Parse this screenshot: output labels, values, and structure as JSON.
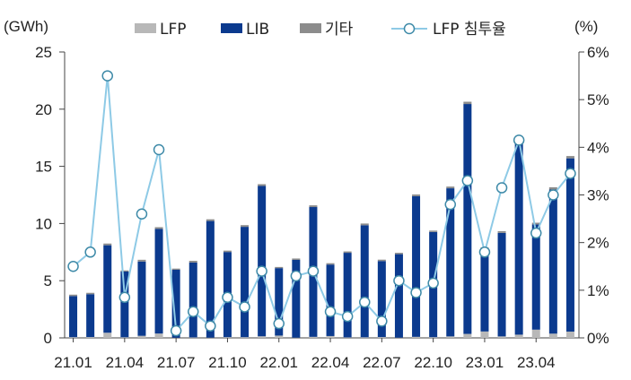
{
  "chart_data": {
    "type": "bar",
    "subtype": "stacked bar with line on secondary axis",
    "categories": [
      "21.01",
      "21.02",
      "21.03",
      "21.04",
      "21.05",
      "21.06",
      "21.07",
      "21.08",
      "21.09",
      "21.10",
      "21.11",
      "21.12",
      "22.01",
      "22.02",
      "22.03",
      "22.04",
      "22.05",
      "22.06",
      "22.07",
      "22.08",
      "22.09",
      "22.10",
      "22.11",
      "22.12",
      "23.01",
      "23.02",
      "23.03",
      "23.04",
      "23.05",
      "23.06"
    ],
    "x_tick_labels": [
      "21.01",
      "21.04",
      "21.07",
      "21.10",
      "22.01",
      "22.04",
      "22.07",
      "22.10",
      "23.01",
      "23.04"
    ],
    "y_left": {
      "unit": "(GWh)",
      "ylim": [
        0,
        25
      ],
      "ticks": [
        "0",
        "5",
        "10",
        "15",
        "20",
        "25"
      ]
    },
    "y_right": {
      "unit": "(%)",
      "ylim": [
        0,
        6
      ],
      "ticks": [
        "0%",
        "1%",
        "2%",
        "3%",
        "4%",
        "5%",
        "6%"
      ]
    },
    "series": [
      {
        "name": "LFP",
        "kind": "bar",
        "axis": "left",
        "color": "#b8b8b8",
        "values": [
          0.06,
          0.07,
          0.45,
          0.05,
          0.18,
          0.38,
          0.01,
          0.04,
          0.02,
          0.06,
          0.06,
          0.14,
          0.2,
          0.02,
          0.09,
          0.16,
          0.04,
          0.05,
          0.07,
          0.02,
          0.09,
          0.06,
          0.13,
          0.35,
          0.56,
          0.13,
          0.28,
          0.72,
          0.37,
          0.55
        ]
      },
      {
        "name": "LIB",
        "kind": "bar",
        "axis": "left",
        "color": "#0b3a8e",
        "values": [
          3.6,
          3.75,
          7.65,
          5.75,
          6.5,
          9.15,
          5.95,
          6.55,
          10.2,
          7.45,
          9.65,
          13.15,
          5.9,
          6.8,
          11.35,
          6.25,
          7.4,
          9.8,
          6.65,
          7.3,
          12.3,
          9.2,
          12.95,
          20.1,
          7.2,
          9.05,
          16.9,
          9.2,
          12.6,
          15.15
        ]
      },
      {
        "name": "기타",
        "kind": "bar",
        "axis": "left",
        "color": "#8c8c8c",
        "values": [
          0.12,
          0.12,
          0.15,
          0.1,
          0.15,
          0.15,
          0.1,
          0.15,
          0.15,
          0.12,
          0.15,
          0.15,
          0.1,
          0.12,
          0.15,
          0.12,
          0.12,
          0.15,
          0.12,
          0.12,
          0.15,
          0.12,
          0.15,
          0.2,
          0.15,
          0.15,
          0.2,
          0.15,
          0.2,
          0.2
        ]
      },
      {
        "name": "LFP 침투율",
        "kind": "line",
        "axis": "right",
        "color": "#8ecae6",
        "values": [
          1.5,
          1.8,
          5.5,
          0.85,
          2.6,
          3.95,
          0.15,
          0.55,
          0.25,
          0.85,
          0.65,
          1.4,
          0.3,
          1.3,
          1.4,
          0.55,
          0.45,
          0.75,
          0.35,
          1.2,
          0.95,
          1.15,
          2.8,
          3.3,
          1.8,
          3.15,
          4.15,
          2.2,
          3.0,
          3.45
        ]
      }
    ],
    "legend_position": "top",
    "grid": false
  }
}
